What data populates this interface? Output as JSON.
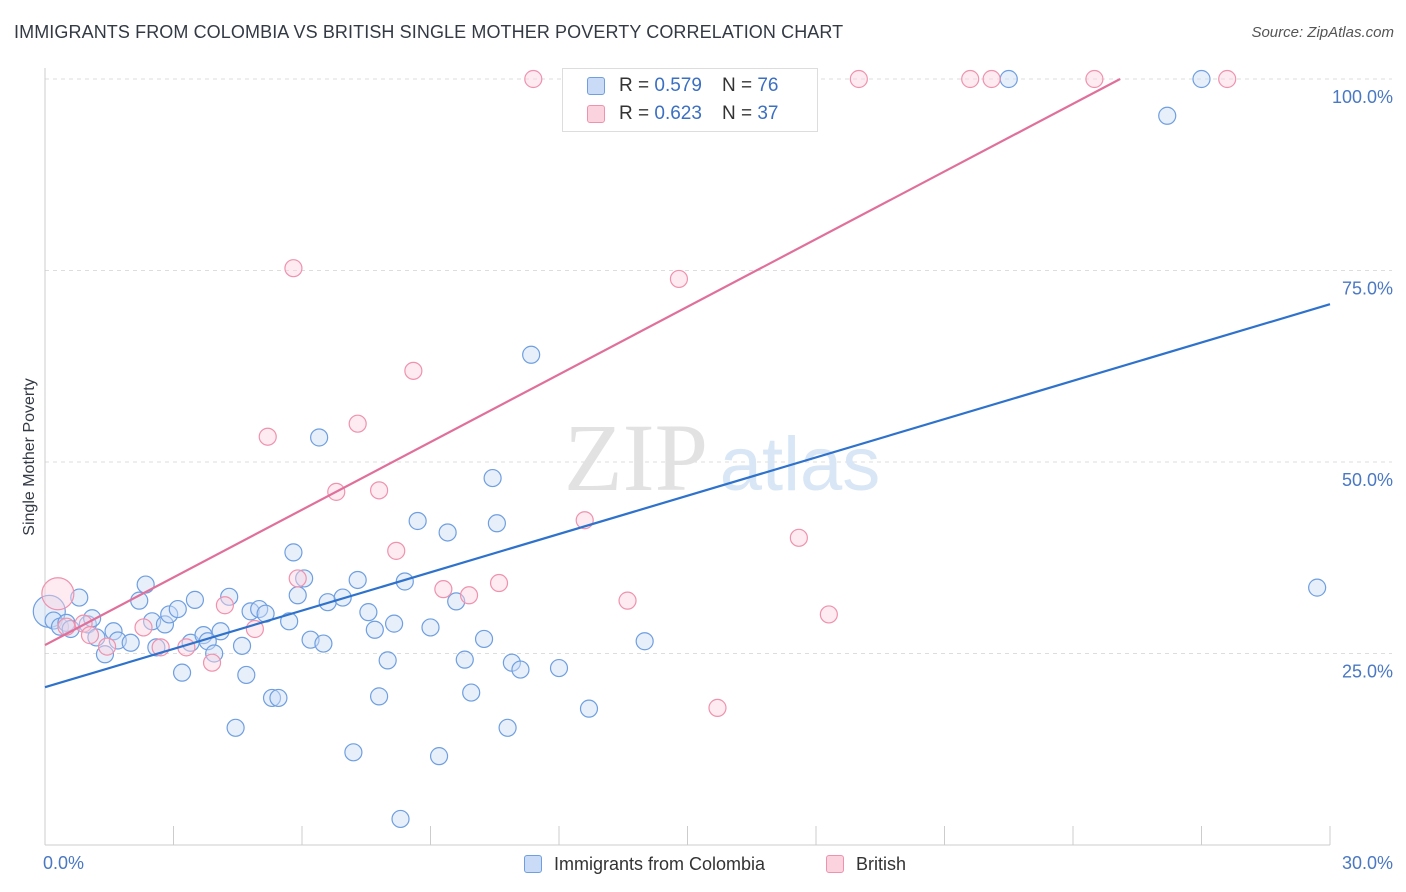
{
  "title": "IMMIGRANTS FROM COLOMBIA VS BRITISH SINGLE MOTHER POVERTY CORRELATION CHART",
  "source": "Source: ZipAtlas.com",
  "watermark": {
    "zip": "ZIP",
    "atlas": "atlas"
  },
  "legend": {
    "rows": [
      {
        "r_label": "R =",
        "r_value": "0.579",
        "n_label": "N =",
        "n_value": "76",
        "color": "#6f9fe0"
      },
      {
        "r_label": "R =",
        "r_value": "0.623",
        "n_label": "N =",
        "n_value": "37",
        "color": "#ef92ad"
      }
    ]
  },
  "chart_data": {
    "type": "scatter",
    "title": "IMMIGRANTS FROM COLOMBIA VS BRITISH SINGLE MOTHER POVERTY CORRELATION CHART",
    "xlabel": "",
    "ylabel": "Single Mother Poverty",
    "xlim": [
      0,
      30
    ],
    "ylim": [
      0,
      100
    ],
    "x_tick_labels": [
      "0.0%",
      "30.0%"
    ],
    "y_tick_labels": [
      "100.0%",
      "75.0%",
      "50.0%",
      "25.0%"
    ],
    "y_ticks": [
      100,
      75,
      50,
      25
    ],
    "grid": true,
    "series": [
      {
        "name": "Immigrants from Colombia",
        "color": "#6f9fe0",
        "trend": {
          "x": [
            0,
            30
          ],
          "y": [
            20.6,
            70.6
          ]
        },
        "points": [
          {
            "x": 0.1,
            "y": 30.5,
            "s": 2
          },
          {
            "x": 0.2,
            "y": 29.3
          },
          {
            "x": 0.35,
            "y": 28.5
          },
          {
            "x": 0.5,
            "y": 29
          },
          {
            "x": 0.6,
            "y": 28.2
          },
          {
            "x": 0.8,
            "y": 32.3
          },
          {
            "x": 1.0,
            "y": 28.8
          },
          {
            "x": 1.1,
            "y": 29.6
          },
          {
            "x": 1.2,
            "y": 27.1
          },
          {
            "x": 1.4,
            "y": 24.9
          },
          {
            "x": 1.6,
            "y": 27.9
          },
          {
            "x": 1.7,
            "y": 26.7
          },
          {
            "x": 2.0,
            "y": 26.4
          },
          {
            "x": 2.2,
            "y": 31.9
          },
          {
            "x": 2.35,
            "y": 34
          },
          {
            "x": 2.5,
            "y": 29.2
          },
          {
            "x": 2.6,
            "y": 25.8
          },
          {
            "x": 2.8,
            "y": 28.8
          },
          {
            "x": 2.9,
            "y": 30.1
          },
          {
            "x": 3.1,
            "y": 30.8
          },
          {
            "x": 3.2,
            "y": 22.5
          },
          {
            "x": 3.4,
            "y": 26.4
          },
          {
            "x": 3.5,
            "y": 32.0
          },
          {
            "x": 3.7,
            "y": 27.4
          },
          {
            "x": 3.8,
            "y": 26.6
          },
          {
            "x": 3.95,
            "y": 25
          },
          {
            "x": 4.1,
            "y": 27.9
          },
          {
            "x": 4.3,
            "y": 32.4
          },
          {
            "x": 4.45,
            "y": 15.3
          },
          {
            "x": 4.6,
            "y": 26
          },
          {
            "x": 4.7,
            "y": 22.2
          },
          {
            "x": 4.8,
            "y": 30.5
          },
          {
            "x": 5.0,
            "y": 30.8
          },
          {
            "x": 5.15,
            "y": 30.2
          },
          {
            "x": 5.3,
            "y": 19.2
          },
          {
            "x": 5.45,
            "y": 19.2
          },
          {
            "x": 5.7,
            "y": 29.2
          },
          {
            "x": 5.8,
            "y": 38.2
          },
          {
            "x": 5.9,
            "y": 32.6
          },
          {
            "x": 6.05,
            "y": 34.8
          },
          {
            "x": 6.2,
            "y": 26.8
          },
          {
            "x": 6.4,
            "y": 53.2
          },
          {
            "x": 6.5,
            "y": 26.3
          },
          {
            "x": 6.6,
            "y": 31.7
          },
          {
            "x": 6.95,
            "y": 32.3
          },
          {
            "x": 7.2,
            "y": 12.1
          },
          {
            "x": 7.3,
            "y": 34.6
          },
          {
            "x": 7.55,
            "y": 30.4
          },
          {
            "x": 7.7,
            "y": 28.1
          },
          {
            "x": 7.8,
            "y": 19.4
          },
          {
            "x": 8.0,
            "y": 24.1
          },
          {
            "x": 8.15,
            "y": 28.9
          },
          {
            "x": 8.3,
            "y": 3.4
          },
          {
            "x": 8.4,
            "y": 34.4
          },
          {
            "x": 8.7,
            "y": 42.3
          },
          {
            "x": 9.0,
            "y": 28.4
          },
          {
            "x": 9.2,
            "y": 11.6
          },
          {
            "x": 9.4,
            "y": 40.8
          },
          {
            "x": 9.6,
            "y": 31.8
          },
          {
            "x": 9.8,
            "y": 24.2
          },
          {
            "x": 9.95,
            "y": 19.9
          },
          {
            "x": 10.25,
            "y": 26.9
          },
          {
            "x": 10.45,
            "y": 47.9
          },
          {
            "x": 10.55,
            "y": 42
          },
          {
            "x": 10.8,
            "y": 15.3
          },
          {
            "x": 10.9,
            "y": 23.8
          },
          {
            "x": 11.1,
            "y": 22.9
          },
          {
            "x": 11.35,
            "y": 64
          },
          {
            "x": 12.0,
            "y": 23.1
          },
          {
            "x": 12.7,
            "y": 17.8
          },
          {
            "x": 14.0,
            "y": 26.6
          },
          {
            "x": 14.7,
            "y": 100
          },
          {
            "x": 22.5,
            "y": 100
          },
          {
            "x": 26.2,
            "y": 95.2
          },
          {
            "x": 27.0,
            "y": 100
          },
          {
            "x": 29.7,
            "y": 33.6
          }
        ]
      },
      {
        "name": "British",
        "color": "#ef92ad",
        "trend": {
          "x": [
            0,
            25.1
          ],
          "y": [
            26.1,
            100
          ]
        },
        "points": [
          {
            "x": 0.3,
            "y": 32.8,
            "s": 2
          },
          {
            "x": 0.5,
            "y": 28.5
          },
          {
            "x": 0.9,
            "y": 28.9
          },
          {
            "x": 1.05,
            "y": 27.4
          },
          {
            "x": 1.45,
            "y": 25.9
          },
          {
            "x": 2.3,
            "y": 28.4
          },
          {
            "x": 2.7,
            "y": 25.8
          },
          {
            "x": 3.3,
            "y": 25.8
          },
          {
            "x": 3.9,
            "y": 23.8
          },
          {
            "x": 4.2,
            "y": 31.3
          },
          {
            "x": 4.9,
            "y": 28.2
          },
          {
            "x": 5.2,
            "y": 53.3
          },
          {
            "x": 5.8,
            "y": 75.3
          },
          {
            "x": 5.9,
            "y": 34.8
          },
          {
            "x": 6.8,
            "y": 46.1
          },
          {
            "x": 7.3,
            "y": 55
          },
          {
            "x": 7.8,
            "y": 46.3
          },
          {
            "x": 8.2,
            "y": 38.4
          },
          {
            "x": 8.6,
            "y": 61.9
          },
          {
            "x": 9.3,
            "y": 33.4
          },
          {
            "x": 9.9,
            "y": 32.6
          },
          {
            "x": 10.6,
            "y": 34.2
          },
          {
            "x": 11.4,
            "y": 100
          },
          {
            "x": 12.6,
            "y": 42.4
          },
          {
            "x": 13.0,
            "y": 100
          },
          {
            "x": 13.6,
            "y": 31.9
          },
          {
            "x": 14.6,
            "y": 100
          },
          {
            "x": 14.8,
            "y": 73.9
          },
          {
            "x": 15.7,
            "y": 17.9
          },
          {
            "x": 16.3,
            "y": 100
          },
          {
            "x": 17.6,
            "y": 40.1
          },
          {
            "x": 18.3,
            "y": 30.1
          },
          {
            "x": 19.0,
            "y": 100
          },
          {
            "x": 21.6,
            "y": 100
          },
          {
            "x": 22.1,
            "y": 100
          },
          {
            "x": 24.5,
            "y": 100
          },
          {
            "x": 27.6,
            "y": 100
          }
        ]
      }
    ]
  }
}
